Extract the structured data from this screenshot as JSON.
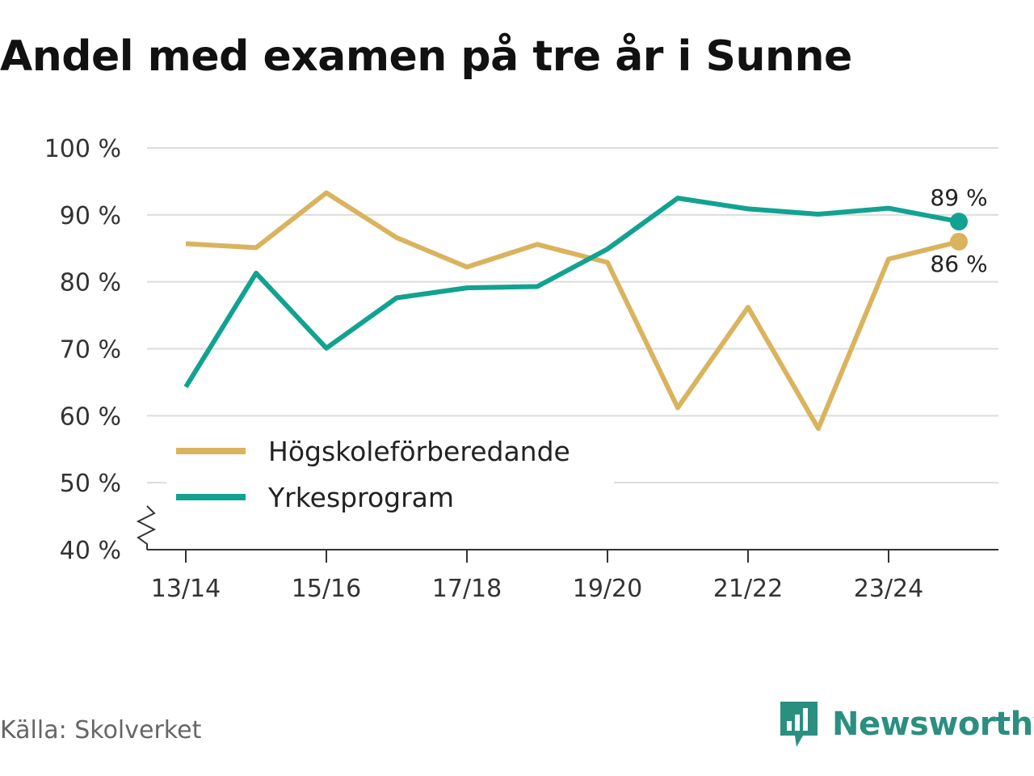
{
  "title": "Andel med examen på tre år i Sunne",
  "source": "Källa: Skolverket",
  "brand": "Newsworthy",
  "chart_data": {
    "type": "line",
    "title": "Andel med examen på tre år i Sunne",
    "x": [
      "13/14",
      "14/15",
      "15/16",
      "16/17",
      "17/18",
      "18/19",
      "19/20",
      "20/21",
      "21/22",
      "22/23",
      "23/24",
      "24/25"
    ],
    "xticks": [
      "13/14",
      "15/16",
      "17/18",
      "19/20",
      "21/22",
      "23/24"
    ],
    "yticks": [
      40,
      50,
      60,
      70,
      80,
      90,
      100
    ],
    "ytick_labels": [
      "40 %",
      "50 %",
      "60 %",
      "70 %",
      "80 %",
      "90 %",
      "100 %"
    ],
    "ylim": [
      40,
      100
    ],
    "y_axis_break": true,
    "grid": true,
    "legend_position": "bottom-left",
    "series": [
      {
        "name": "Högskoleförberedande",
        "color": "#dab35f",
        "values": [
          85.7,
          85.1,
          93.3,
          86.6,
          82.2,
          85.6,
          82.9,
          61.2,
          76.2,
          58.1,
          83.4,
          86
        ],
        "end_label": "86 %"
      },
      {
        "name": "Yrkesprogram",
        "color": "#12a291",
        "values": [
          64.3,
          81.3,
          70.1,
          77.6,
          79.1,
          79.3,
          84.9,
          92.5,
          90.9,
          90.1,
          91.0,
          89
        ],
        "end_label": "89 %"
      }
    ]
  }
}
